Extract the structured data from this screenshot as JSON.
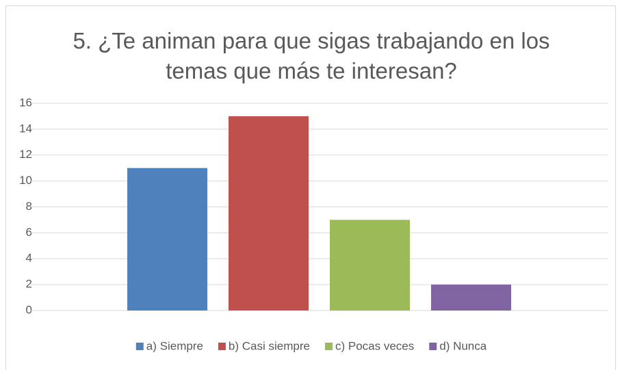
{
  "chart_data": {
    "type": "bar",
    "title": "5. ¿Te animan para que sigas trabajando en los temas que más te interesan?",
    "categories": [
      null
    ],
    "series": [
      {
        "name": "a) Siempre",
        "color": "#4f81bd",
        "values": [
          11
        ]
      },
      {
        "name": "b) Casi siempre",
        "color": "#c0504d",
        "values": [
          15
        ]
      },
      {
        "name": "c) Pocas veces",
        "color": "#9bbb59",
        "values": [
          7
        ]
      },
      {
        "name": "d) Nunca",
        "color": "#8064a2",
        "values": [
          2
        ]
      }
    ],
    "ylim": [
      0,
      16
    ],
    "yticks": [
      0,
      2,
      4,
      6,
      8,
      10,
      12,
      14,
      16
    ],
    "grid": true,
    "legend": "bottom"
  }
}
